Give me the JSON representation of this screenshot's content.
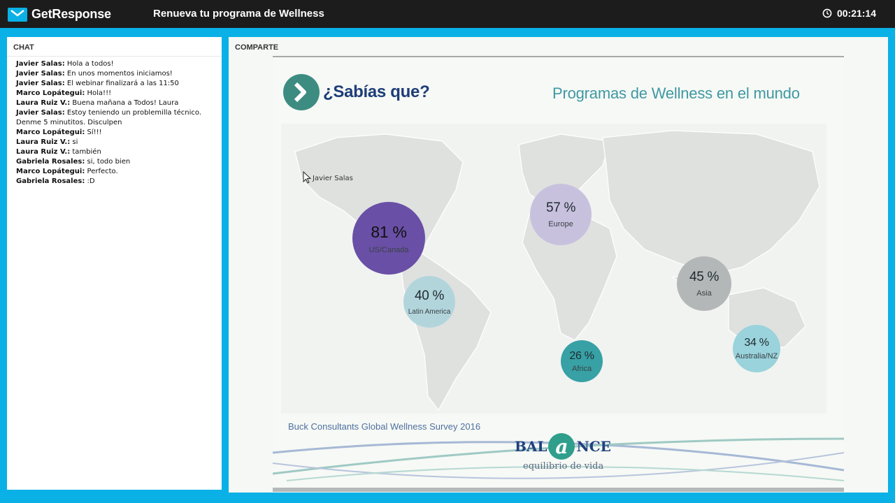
{
  "header": {
    "brand": "GetResponse",
    "webinar_title": "Renueva tu programa de Wellness",
    "timer": "00:21:14"
  },
  "chat": {
    "title": "CHAT",
    "messages": [
      {
        "author": "Javier Salas:",
        "text": "Hola a todos!"
      },
      {
        "author": "Javier Salas:",
        "text": "En unos momentos iniciamos!"
      },
      {
        "author": "Javier Salas:",
        "text": "El webinar finalizará a las 11:50"
      },
      {
        "author": "Marco Lopátegui:",
        "text": "Hola!!!"
      },
      {
        "author": "Laura Ruiz V.:",
        "text": "Buena mañana a Todos! Laura"
      },
      {
        "author": "Javier Salas:",
        "text": "Estoy teniendo un problemilla técnico. Denme 5 minutitos. Disculpen"
      },
      {
        "author": "Marco Lopátegui:",
        "text": "Sí!!!"
      },
      {
        "author": "Laura Ruiz V.:",
        "text": "si"
      },
      {
        "author": "Laura Ruiz V.:",
        "text": "también"
      },
      {
        "author": "Gabriela Rosales:",
        "text": "si, todo bien"
      },
      {
        "author": "Marco Lopátegui:",
        "text": "Perfecto."
      },
      {
        "author": "Gabriela Rosales:",
        "text": ":D"
      }
    ]
  },
  "share": {
    "title": "COMPARTE",
    "presenter_cursor_label": "Javier Salas",
    "slide": {
      "heading": "¿Sabías que?",
      "title": "Programas de Wellness en el mundo",
      "bubbles": [
        {
          "percent": "81 %",
          "region": "US/Canada",
          "color": "#694fa6"
        },
        {
          "percent": "57 %",
          "region": "Europe",
          "color": "#c8c1de"
        },
        {
          "percent": "40 %",
          "region": "Latin America",
          "color": "#b2d5dc"
        },
        {
          "percent": "45 %",
          "region": "Asia",
          "color": "#b4b7b7"
        },
        {
          "percent": "26 %",
          "region": "Africa",
          "color": "#37a1a5"
        },
        {
          "percent": "34 %",
          "region": "Australia/NZ",
          "color": "#9ad3dc"
        }
      ],
      "source": "Buck Consultants Global Wellness Survey 2016",
      "logo_left": "BAL",
      "logo_mid": "a",
      "logo_right": "NCE",
      "logo_tagline": "equilibrio de vida"
    }
  }
}
